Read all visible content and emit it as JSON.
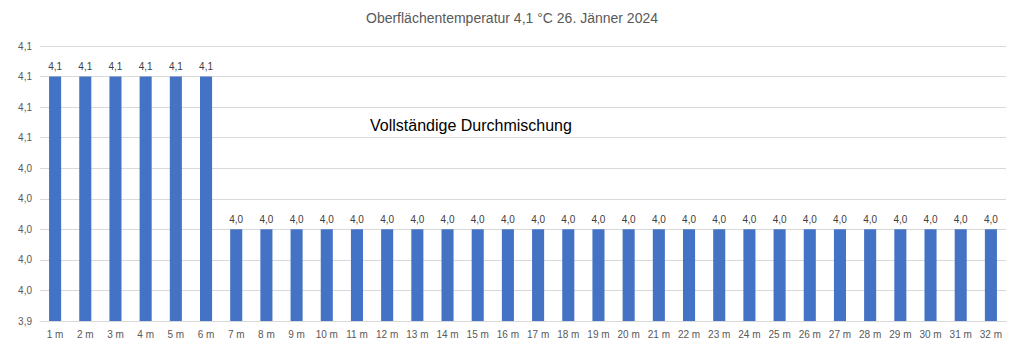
{
  "chart_data": {
    "type": "bar",
    "title": "Oberflächentemperatur 4,1 °C 26. Jänner 2024",
    "annotation": "Vollständige Durchmischung",
    "categories": [
      "1 m",
      "2 m",
      "3 m",
      "4 m",
      "5 m",
      "6 m",
      "7 m",
      "8 m",
      "9 m",
      "10 m",
      "11 m",
      "12 m",
      "13 m",
      "14 m",
      "15 m",
      "16 m",
      "17 m",
      "18 m",
      "19 m",
      "20 m",
      "21 m",
      "22 m",
      "23 m",
      "24 m",
      "25 m",
      "26 m",
      "27 m",
      "28 m",
      "29 m",
      "30 m",
      "31 m",
      "32 m"
    ],
    "values": [
      4.1,
      4.1,
      4.1,
      4.1,
      4.1,
      4.1,
      4.0,
      4.0,
      4.0,
      4.0,
      4.0,
      4.0,
      4.0,
      4.0,
      4.0,
      4.0,
      4.0,
      4.0,
      4.0,
      4.0,
      4.0,
      4.0,
      4.0,
      4.0,
      4.0,
      4.0,
      4.0,
      4.0,
      4.0,
      4.0,
      4.0,
      4.0
    ],
    "value_labels": [
      "4,1",
      "4,1",
      "4,1",
      "4,1",
      "4,1",
      "4,1",
      "4,0",
      "4,0",
      "4,0",
      "4,0",
      "4,0",
      "4,0",
      "4,0",
      "4,0",
      "4,0",
      "4,0",
      "4,0",
      "4,0",
      "4,0",
      "4,0",
      "4,0",
      "4,0",
      "4,0",
      "4,0",
      "4,0",
      "4,0",
      "4,0",
      "4,0",
      "4,0",
      "4,0",
      "4,0",
      "4,0"
    ],
    "color": "#4472c4",
    "ylim": [
      3.94,
      4.12
    ],
    "yticks": [
      {
        "value": 3.94,
        "label": "3,9"
      },
      {
        "value": 3.96,
        "label": "4,0"
      },
      {
        "value": 3.98,
        "label": "4,0"
      },
      {
        "value": 4.0,
        "label": "4,0"
      },
      {
        "value": 4.02,
        "label": "4,0"
      },
      {
        "value": 4.04,
        "label": "4,0"
      },
      {
        "value": 4.06,
        "label": "4,1"
      },
      {
        "value": 4.08,
        "label": "4,1"
      },
      {
        "value": 4.1,
        "label": "4,1"
      },
      {
        "value": 4.12,
        "label": "4,1"
      }
    ],
    "grid": true,
    "data_labels": true
  }
}
